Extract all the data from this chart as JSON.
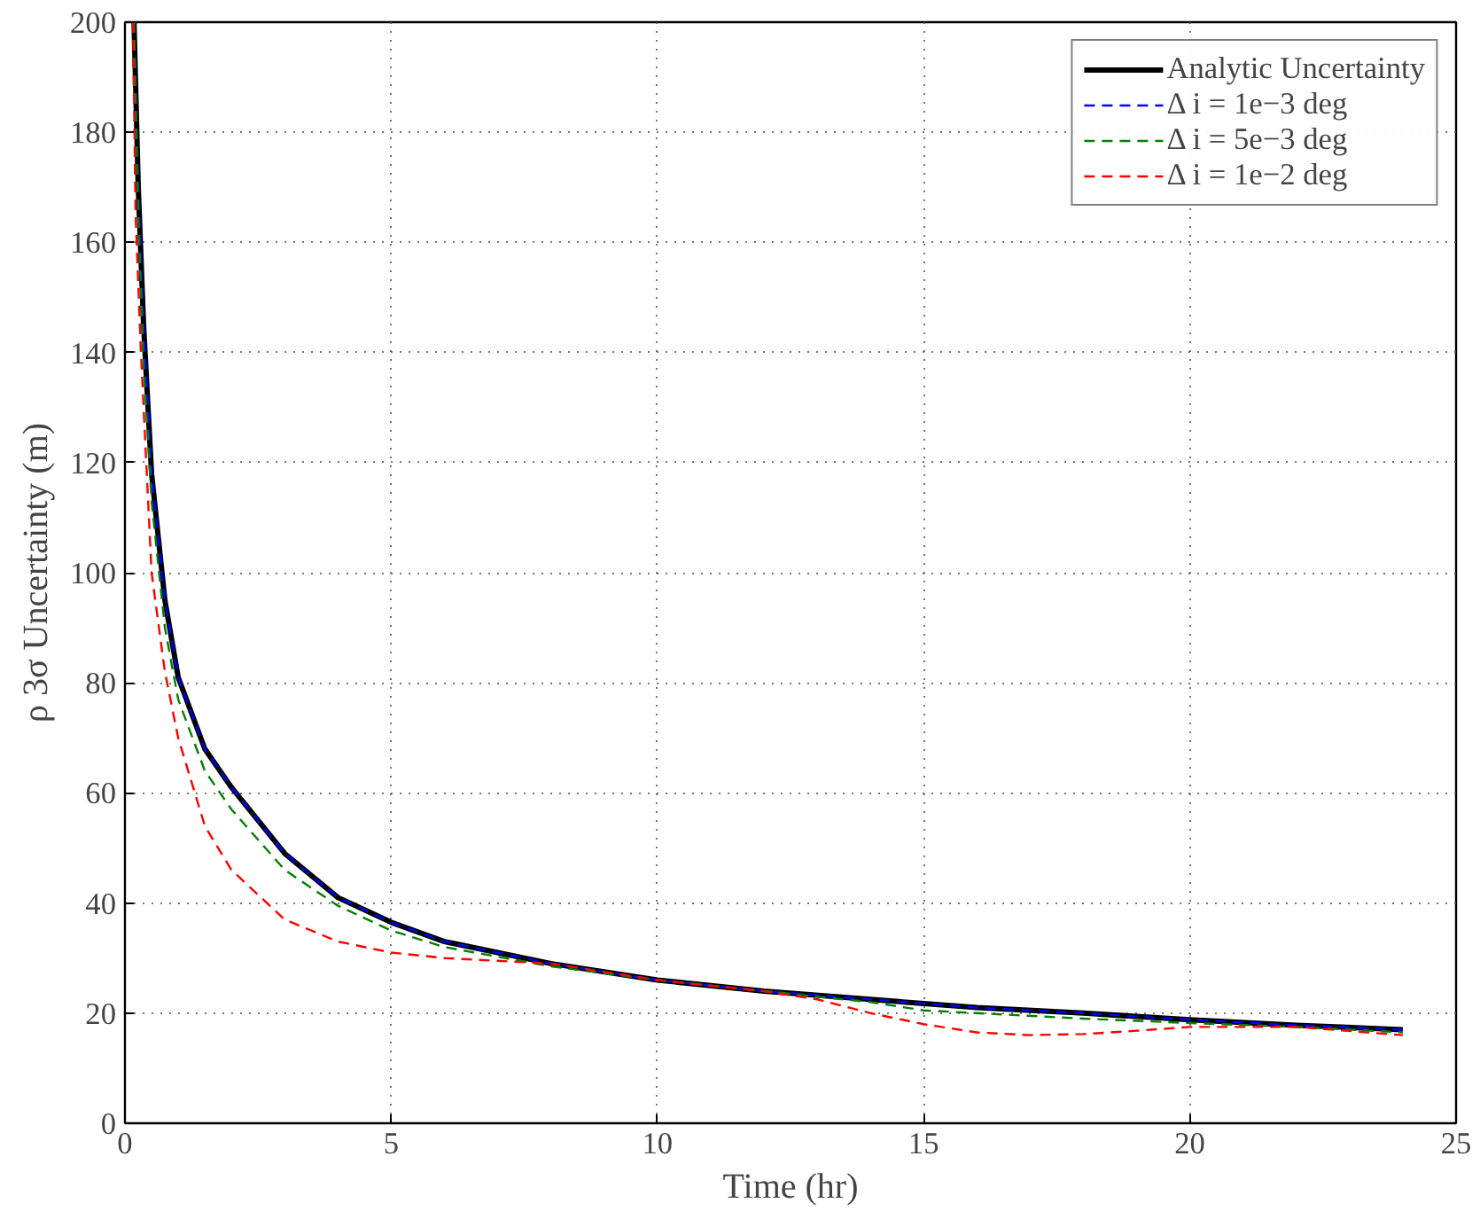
{
  "chart_data": {
    "type": "line",
    "xlabel": "Time (hr)",
    "ylabel": "ρ 3σ Uncertainty (m)",
    "xlim": [
      0,
      25
    ],
    "ylim": [
      0,
      200
    ],
    "xticks": [
      0,
      5,
      10,
      15,
      20,
      25
    ],
    "yticks": [
      0,
      20,
      40,
      60,
      80,
      100,
      120,
      140,
      160,
      180,
      200
    ],
    "grid": true,
    "legend": "top right",
    "marker": "none",
    "series": [
      {
        "name": "Analytic Uncertainty",
        "color": "#000000",
        "line_style": "solid",
        "x": [
          0.17,
          0.25,
          0.35,
          0.5,
          0.75,
          1,
          1.5,
          2,
          3,
          4,
          5,
          6,
          7,
          8,
          10,
          12,
          14,
          16,
          18,
          20,
          22,
          24
        ],
        "values": [
          200,
          170,
          145,
          118,
          95,
          81,
          68,
          61,
          49,
          41,
          36.5,
          33,
          31,
          29,
          26,
          24,
          22.5,
          21,
          20,
          18.8,
          17.8,
          17
        ]
      },
      {
        "name": "Δ i = 1e−3 deg",
        "color": "#0000ff",
        "line_style": "dashed",
        "x": [
          0.17,
          0.25,
          0.35,
          0.5,
          0.75,
          1,
          1.5,
          2,
          3,
          4,
          5,
          6,
          7,
          8,
          10,
          12,
          14,
          16,
          18,
          20,
          22,
          24
        ],
        "values": [
          200,
          170,
          145,
          118,
          95,
          81,
          68,
          61,
          49,
          41,
          36.5,
          33,
          31,
          29,
          26,
          24,
          22.5,
          21,
          20,
          18.8,
          17.8,
          17
        ]
      },
      {
        "name": "Δ i = 5e−3 deg",
        "color": "#008000",
        "line_style": "dashed",
        "x": [
          0.17,
          0.25,
          0.35,
          0.5,
          0.75,
          1,
          1.5,
          2,
          3,
          4,
          5,
          6,
          8,
          10,
          12,
          14,
          15,
          16,
          18,
          20,
          22,
          24
        ],
        "values": [
          200,
          165,
          138,
          113,
          90,
          77,
          64,
          57,
          46,
          39.5,
          35,
          32,
          28.5,
          26,
          24,
          22,
          20.5,
          20,
          19,
          18.2,
          17.5,
          16.5
        ]
      },
      {
        "name": "Δ i = 1e−2 deg",
        "color": "#ff0000",
        "line_style": "dashed",
        "x": [
          0.15,
          0.2,
          0.3,
          0.5,
          0.75,
          1,
          1.5,
          2,
          3,
          4,
          5,
          6,
          7,
          8,
          10,
          12,
          13,
          14,
          15,
          16,
          17,
          18,
          19,
          20,
          22,
          24
        ],
        "values": [
          200,
          165,
          140,
          100,
          82,
          70,
          54,
          46,
          37,
          33,
          31,
          30,
          29.5,
          29,
          26,
          24,
          22.5,
          20,
          18,
          16.5,
          16,
          16.2,
          16.8,
          17.5,
          17.5,
          16
        ]
      }
    ]
  }
}
